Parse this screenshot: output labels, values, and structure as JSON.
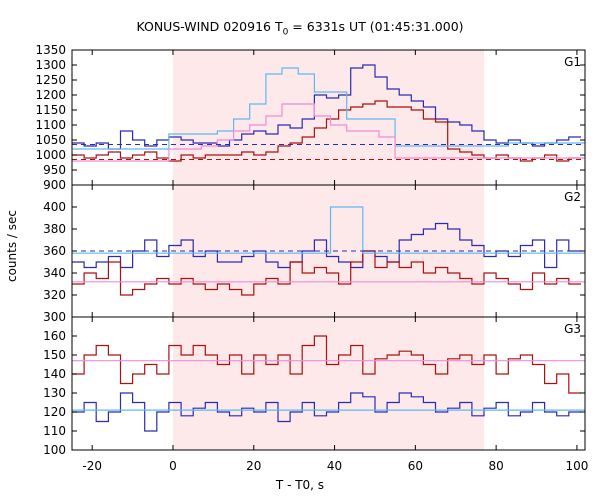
{
  "title": {
    "prefix": "KONUS-WIND 020916 T",
    "sub": "0",
    "suffix": " = 6331s UT (01:45:31.000)"
  },
  "chart_data": {
    "type": "line",
    "step": true,
    "xlabel": "T - T0, s",
    "ylabel": "counts / sec",
    "xlim": [
      -25,
      102
    ],
    "xticks": [
      -20,
      0,
      20,
      40,
      60,
      80,
      100
    ],
    "xtick_labels": [
      "-20",
      "0",
      "20",
      "40",
      "60",
      "80",
      "100"
    ],
    "shaded_interval": [
      0,
      77
    ],
    "colors": {
      "blue": "#2b2bb0",
      "red": "#aa1111",
      "lightblue": "#5fb8f0",
      "pink": "#f08cd8",
      "shade": "#fde8ea"
    },
    "panels": [
      {
        "label": "G1",
        "ylim": [
          900,
          1350
        ],
        "yticks": [
          900,
          950,
          1000,
          1050,
          1100,
          1150,
          1200,
          1250,
          1300,
          1350
        ],
        "ytick_labels": [
          "900",
          "950",
          "1000",
          "1050",
          "1100",
          "1150",
          "1200",
          "1250",
          "1300",
          "1350"
        ],
        "series": [
          {
            "color": "blue",
            "x0": -25,
            "dx": 3,
            "values": [
              1040,
              1030,
              1040,
              1020,
              1080,
              1050,
              1030,
              1050,
              1060,
              1050,
              1040,
              1040,
              1030,
              1050,
              1070,
              1080,
              1070,
              1100,
              1090,
              1120,
              1200,
              1190,
              1200,
              1290,
              1300,
              1260,
              1220,
              1200,
              1180,
              1160,
              1120,
              1110,
              1100,
              1080,
              1050,
              1040,
              1050,
              1040,
              1030,
              1040,
              1050,
              1060
            ]
          },
          {
            "color": "red",
            "x0": -25,
            "dx": 3,
            "values": [
              1000,
              990,
              1000,
              1010,
              990,
              1000,
              1010,
              990,
              980,
              1000,
              990,
              1000,
              1000,
              1000,
              1010,
              1000,
              1010,
              1030,
              1040,
              1060,
              1090,
              1120,
              1150,
              1160,
              1170,
              1180,
              1160,
              1160,
              1150,
              1120,
              1110,
              1020,
              1010,
              1000,
              990,
              1000,
              990,
              980,
              990,
              1000,
              980,
              990
            ]
          },
          {
            "color": "lightblue",
            "x0": -25,
            "dx": 4,
            "values": [
              1020,
              1020,
              1020,
              1020,
              1020,
              1020,
              1070,
              1070,
              1070,
              1080,
              1120,
              1170,
              1270,
              1290,
              1270,
              1210,
              1210,
              1120,
              1120,
              1120,
              1030,
              1030,
              1030,
              1030,
              1030,
              1030,
              1030,
              1040,
              1040,
              1040,
              1040,
              1040
            ]
          },
          {
            "color": "pink",
            "x0": -25,
            "dx": 4,
            "values": [
              980,
              980,
              980,
              980,
              980,
              980,
              1020,
              1020,
              1030,
              1050,
              1080,
              1100,
              1130,
              1170,
              1170,
              1130,
              1100,
              1080,
              1080,
              1060,
              990,
              990,
              990,
              990,
              990,
              990,
              990,
              990,
              990,
              990,
              990,
              990
            ]
          }
        ],
        "baselines": [
          {
            "color": "blue",
            "y": 1035
          },
          {
            "color": "red",
            "y": 985
          }
        ]
      },
      {
        "label": "G2",
        "ylim": [
          300,
          420
        ],
        "yticks": [
          300,
          320,
          340,
          360,
          380,
          400
        ],
        "ytick_labels": [
          "300",
          "320",
          "340",
          "360",
          "380",
          "400"
        ],
        "series": [
          {
            "color": "blue",
            "x0": -25,
            "dx": 3,
            "values": [
              350,
              345,
              350,
              355,
              345,
              360,
              370,
              355,
              365,
              370,
              355,
              360,
              350,
              350,
              355,
              360,
              350,
              345,
              350,
              360,
              370,
              355,
              350,
              345,
              360,
              355,
              350,
              370,
              375,
              380,
              385,
              380,
              370,
              365,
              355,
              360,
              355,
              365,
              370,
              345,
              370,
              360
            ]
          },
          {
            "color": "red",
            "x0": -25,
            "dx": 3,
            "values": [
              330,
              340,
              335,
              350,
              320,
              325,
              330,
              335,
              330,
              335,
              330,
              325,
              330,
              325,
              320,
              330,
              335,
              330,
              350,
              340,
              345,
              340,
              330,
              350,
              360,
              345,
              350,
              345,
              350,
              340,
              345,
              340,
              335,
              330,
              340,
              335,
              330,
              325,
              340,
              330,
              335,
              330
            ]
          },
          {
            "color": "lightblue",
            "x0": -25,
            "dx": 4,
            "values": [
              358,
              358,
              358,
              358,
              358,
              358,
              358,
              358,
              358,
              358,
              358,
              358,
              358,
              358,
              358,
              358,
              400,
              400,
              358,
              358,
              358,
              358,
              358,
              358,
              358,
              358,
              358,
              358,
              358,
              358,
              358,
              358
            ]
          },
          {
            "color": "pink",
            "x0": -25,
            "dx": 4,
            "values": [
              332,
              332,
              332,
              332,
              332,
              332,
              332,
              332,
              332,
              332,
              332,
              332,
              332,
              332,
              332,
              332,
              332,
              332,
              332,
              332,
              332,
              332,
              332,
              332,
              332,
              332,
              332,
              332,
              332,
              332,
              332,
              332
            ]
          }
        ],
        "baselines": [
          {
            "color": "blue",
            "y": 360
          }
        ]
      },
      {
        "label": "G3",
        "ylim": [
          100,
          170
        ],
        "yticks": [
          100,
          110,
          120,
          130,
          140,
          150,
          160
        ],
        "ytick_labels": [
          "100",
          "110",
          "120",
          "130",
          "140",
          "150",
          "160"
        ],
        "series": [
          {
            "color": "blue",
            "x0": -25,
            "dx": 3,
            "values": [
              120,
              125,
              115,
              120,
              130,
              125,
              110,
              120,
              125,
              118,
              122,
              125,
              120,
              118,
              122,
              120,
              125,
              115,
              120,
              125,
              118,
              120,
              125,
              130,
              128,
              120,
              125,
              130,
              128,
              125,
              120,
              122,
              125,
              118,
              122,
              125,
              118,
              120,
              125,
              120,
              118,
              120
            ]
          },
          {
            "color": "red",
            "x0": -25,
            "dx": 3,
            "values": [
              140,
              150,
              155,
              150,
              135,
              140,
              145,
              140,
              155,
              150,
              155,
              150,
              145,
              150,
              140,
              150,
              145,
              150,
              140,
              155,
              160,
              145,
              150,
              155,
              140,
              148,
              150,
              152,
              150,
              145,
              140,
              148,
              150,
              145,
              150,
              140,
              148,
              150,
              145,
              135,
              140,
              130
            ]
          },
          {
            "color": "lightblue",
            "x0": -25,
            "dx": 4,
            "values": [
              121,
              121,
              121,
              121,
              121,
              121,
              121,
              121,
              121,
              121,
              121,
              121,
              121,
              121,
              121,
              121,
              121,
              121,
              121,
              121,
              121,
              121,
              121,
              121,
              121,
              121,
              121,
              121,
              121,
              121,
              121,
              121
            ]
          },
          {
            "color": "pink",
            "x0": -25,
            "dx": 4,
            "values": [
              147,
              147,
              147,
              147,
              147,
              147,
              147,
              147,
              147,
              147,
              147,
              147,
              147,
              147,
              147,
              147,
              147,
              147,
              147,
              147,
              147,
              147,
              147,
              147,
              147,
              147,
              147,
              147,
              147,
              147,
              147,
              147
            ]
          }
        ],
        "baselines": []
      }
    ]
  }
}
